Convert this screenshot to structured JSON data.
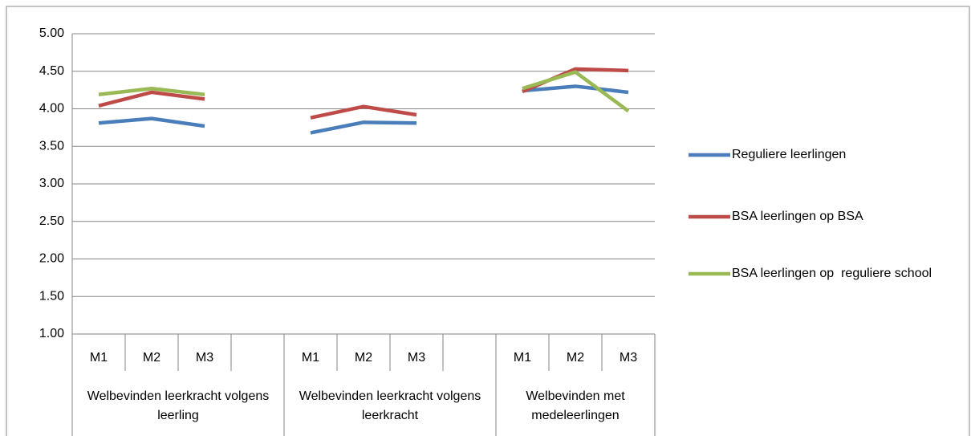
{
  "chart_data": {
    "type": "line",
    "categories": [
      "M1",
      "M2",
      "M3",
      null,
      "M1",
      "M2",
      "M3",
      null,
      "M1",
      "M2",
      "M3"
    ],
    "groups": [
      "Welbevinden leerkracht volgens leerling",
      "Welbevinden leerkracht volgens leerkracht",
      "Welbevinden met medeleerlingen"
    ],
    "series": [
      {
        "name": "Reguliere leerlingen",
        "color": "#4a7ebb",
        "values": [
          3.81,
          3.87,
          3.77,
          null,
          3.68,
          3.82,
          3.81,
          null,
          4.24,
          4.3,
          4.22
        ]
      },
      {
        "name": "BSA leerlingen op BSA",
        "color": "#be4b48",
        "values": [
          4.04,
          4.22,
          4.13,
          null,
          3.88,
          4.03,
          3.92,
          null,
          4.23,
          4.53,
          4.51
        ]
      },
      {
        "name": "BSA leerlingen op  reguliere school",
        "color": "#98b954",
        "values": [
          4.19,
          4.27,
          4.19,
          null,
          null,
          null,
          null,
          null,
          4.27,
          4.49,
          3.97
        ]
      }
    ],
    "ylim": [
      1,
      5
    ],
    "yticks": [
      {
        "value": 1,
        "label": "1.00"
      },
      {
        "value": 1.5,
        "label": "1.50"
      },
      {
        "value": 2,
        "label": "2.00"
      },
      {
        "value": 2.5,
        "label": "2.50"
      },
      {
        "value": 3,
        "label": "3.00"
      },
      {
        "value": 3.5,
        "label": "3.50"
      },
      {
        "value": 4,
        "label": "4.00"
      },
      {
        "value": 4.5,
        "label": "4.50"
      },
      {
        "value": 5,
        "label": "5.00"
      }
    ],
    "grid": true,
    "legend": "right"
  }
}
